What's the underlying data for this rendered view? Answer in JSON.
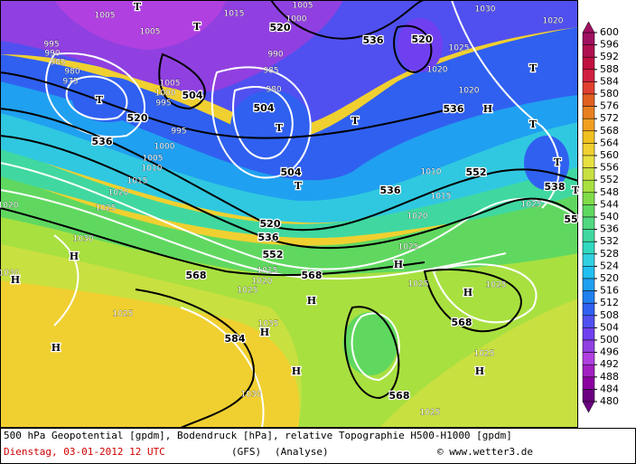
{
  "map": {
    "geopotential_labels": [
      520,
      536,
      520,
      504,
      520,
      504,
      536,
      536,
      504,
      552,
      536,
      538,
      520,
      536,
      552,
      568,
      568,
      568,
      584,
      568,
      55
    ],
    "pressure_labels": [
      1005,
      1005,
      1015,
      1000,
      1005,
      995,
      990,
      985,
      980,
      975,
      1005,
      1000,
      995,
      990,
      985,
      980,
      995,
      1000,
      1005,
      1010,
      1015,
      1020,
      1025,
      1030,
      1020,
      1010,
      1015,
      1020,
      1025,
      1030,
      1015,
      1020,
      1025,
      1025,
      1035,
      1030,
      1025,
      1025,
      1025,
      1025,
      1025,
      1020,
      1030,
      1025,
      1020,
      1020
    ],
    "markers": [
      "T",
      "T",
      "T",
      "T",
      "T",
      "T",
      "T",
      "T",
      "T",
      "H",
      "H",
      "H",
      "H",
      "H",
      "H",
      "H",
      "H",
      "H",
      "H",
      "T"
    ]
  },
  "colorbar": {
    "ticks": [
      600,
      596,
      592,
      588,
      584,
      580,
      576,
      572,
      568,
      564,
      560,
      556,
      552,
      548,
      544,
      540,
      536,
      532,
      528,
      524,
      520,
      516,
      512,
      508,
      504,
      500,
      496,
      492,
      488,
      484,
      480
    ],
    "colors": [
      "#a01060",
      "#b01050",
      "#c01040",
      "#d02040",
      "#e04030",
      "#e06020",
      "#e88020",
      "#f0a020",
      "#f0c020",
      "#f0d030",
      "#e8e040",
      "#c8e040",
      "#a8e040",
      "#80dc48",
      "#60d860",
      "#50d880",
      "#40d8a0",
      "#30d8c0",
      "#30d0e0",
      "#20c0f0",
      "#20a0f0",
      "#2080f0",
      "#3060f0",
      "#5050f0",
      "#7040f0",
      "#9040e0",
      "#b040e0",
      "#a020c0",
      "#8a00a0",
      "#6a0080"
    ]
  },
  "footer": {
    "line1": "500 hPa Geopotential [gpdm], Bodendruck [hPa], relative Topographie H500-H1000 [gpdm]",
    "date": "Dienstag, 03-01-2012  12 UTC",
    "model": "(GFS)",
    "run": "(Analyse)",
    "credit": "© www.wetter3.de"
  }
}
